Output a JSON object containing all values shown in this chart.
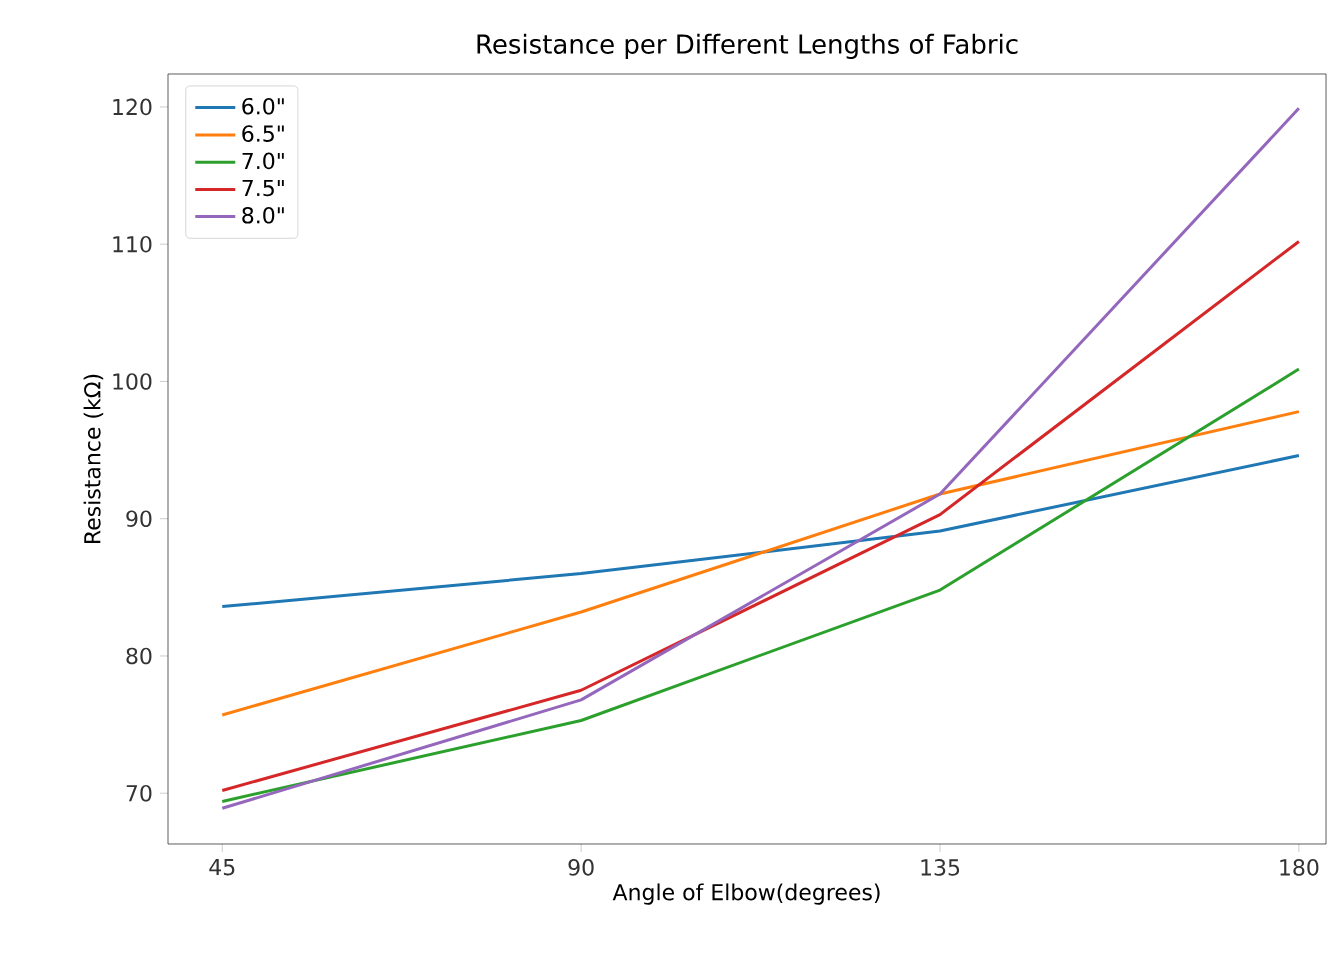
{
  "chart_data": {
    "type": "line",
    "title": "Resistance per Different Lengths of Fabric",
    "xlabel": "Angle of Elbow(degrees)",
    "ylabel": "Resistance (kΩ)",
    "x": [
      45,
      90,
      135,
      180
    ],
    "series": [
      {
        "name": "6.0\"",
        "color": "#1f77b4",
        "values": [
          83.6,
          86.0,
          89.1,
          94.6
        ]
      },
      {
        "name": "6.5\"",
        "color": "#ff7f0e",
        "values": [
          75.7,
          83.2,
          91.8,
          97.8
        ]
      },
      {
        "name": "7.0\"",
        "color": "#2ca02c",
        "values": [
          69.4,
          75.3,
          84.8,
          100.9
        ]
      },
      {
        "name": "7.5\"",
        "color": "#d62728",
        "values": [
          70.2,
          77.5,
          90.3,
          110.2
        ]
      },
      {
        "name": "8.0\"",
        "color": "#9467bd",
        "values": [
          68.9,
          76.8,
          91.8,
          119.9
        ]
      }
    ],
    "xlim": [
      38.2,
      183.4
    ],
    "ylim": [
      66.3,
      122.4
    ],
    "xticks": [
      45,
      90,
      135,
      180
    ],
    "yticks": [
      70,
      80,
      90,
      100,
      110,
      120
    ],
    "legend": "top left",
    "grid": false,
    "line_style": "solid",
    "marker": "none"
  }
}
